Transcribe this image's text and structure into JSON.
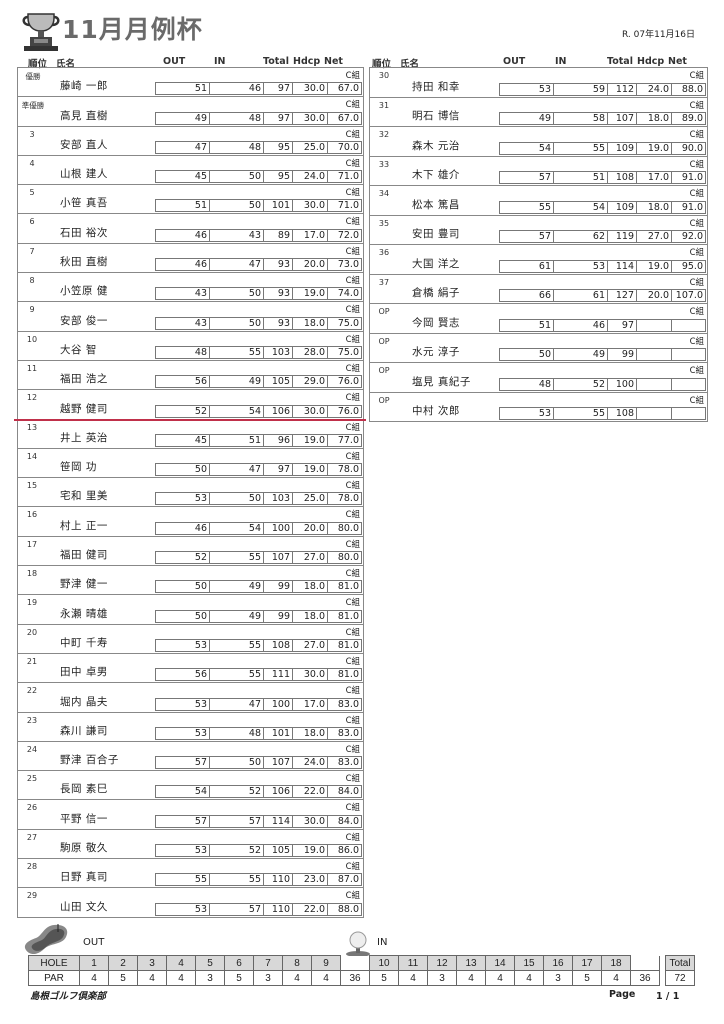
{
  "title": "11月月例杯",
  "date": "R. 07年11月16日",
  "headers": {
    "rank": "順位",
    "name": "氏名",
    "out": "OUT",
    "in": "IN",
    "total": "Total",
    "hdcp": "Hdcp",
    "net": "Net"
  },
  "group_label": "C組",
  "left_rows": [
    [
      "優勝",
      "藤崎 一郎",
      "51",
      "46",
      "97",
      "30.0",
      "67.0"
    ],
    [
      "準優勝",
      "高見 直樹",
      "49",
      "48",
      "97",
      "30.0",
      "67.0"
    ],
    [
      "3",
      "安部 直人",
      "47",
      "48",
      "95",
      "25.0",
      "70.0"
    ],
    [
      "4",
      "山根 建人",
      "45",
      "50",
      "95",
      "24.0",
      "71.0"
    ],
    [
      "5",
      "小笹 真吾",
      "51",
      "50",
      "101",
      "30.0",
      "71.0"
    ],
    [
      "6",
      "石田 裕次",
      "46",
      "43",
      "89",
      "17.0",
      "72.0"
    ],
    [
      "7",
      "秋田 直樹",
      "46",
      "47",
      "93",
      "20.0",
      "73.0"
    ],
    [
      "8",
      "小笠原 健",
      "43",
      "50",
      "93",
      "19.0",
      "74.0"
    ],
    [
      "9",
      "安部 俊一",
      "43",
      "50",
      "93",
      "18.0",
      "75.0"
    ],
    [
      "10",
      "大谷 智",
      "48",
      "55",
      "103",
      "28.0",
      "75.0"
    ],
    [
      "11",
      "福田 浩之",
      "56",
      "49",
      "105",
      "29.0",
      "76.0"
    ],
    [
      "12",
      "越野 健司",
      "52",
      "54",
      "106",
      "30.0",
      "76.0"
    ],
    [
      "13",
      "井上 英治",
      "45",
      "51",
      "96",
      "19.0",
      "77.0"
    ],
    [
      "14",
      "笹岡 功",
      "50",
      "47",
      "97",
      "19.0",
      "78.0"
    ],
    [
      "15",
      "宅和 里美",
      "53",
      "50",
      "103",
      "25.0",
      "78.0"
    ],
    [
      "16",
      "村上 正一",
      "46",
      "54",
      "100",
      "20.0",
      "80.0"
    ],
    [
      "17",
      "福田 健司",
      "52",
      "55",
      "107",
      "27.0",
      "80.0"
    ],
    [
      "18",
      "野津 健一",
      "50",
      "49",
      "99",
      "18.0",
      "81.0"
    ],
    [
      "19",
      "永瀬 晴雄",
      "50",
      "49",
      "99",
      "18.0",
      "81.0"
    ],
    [
      "20",
      "中町 千寿",
      "53",
      "55",
      "108",
      "27.0",
      "81.0"
    ],
    [
      "21",
      "田中 卓男",
      "56",
      "55",
      "111",
      "30.0",
      "81.0"
    ],
    [
      "22",
      "堀内 晶夫",
      "53",
      "47",
      "100",
      "17.0",
      "83.0"
    ],
    [
      "23",
      "森川 謙司",
      "53",
      "48",
      "101",
      "18.0",
      "83.0"
    ],
    [
      "24",
      "野津 百合子",
      "57",
      "50",
      "107",
      "24.0",
      "83.0"
    ],
    [
      "25",
      "長岡 素巳",
      "54",
      "52",
      "106",
      "22.0",
      "84.0"
    ],
    [
      "26",
      "平野 信一",
      "57",
      "57",
      "114",
      "30.0",
      "84.0"
    ],
    [
      "27",
      "駒原 敬久",
      "53",
      "52",
      "105",
      "19.0",
      "86.0"
    ],
    [
      "28",
      "日野 真司",
      "55",
      "55",
      "110",
      "23.0",
      "87.0"
    ],
    [
      "29",
      "山田 文久",
      "53",
      "57",
      "110",
      "22.0",
      "88.0"
    ]
  ],
  "right_rows": [
    [
      "30",
      "持田 和幸",
      "53",
      "59",
      "112",
      "24.0",
      "88.0"
    ],
    [
      "31",
      "明石 博信",
      "49",
      "58",
      "107",
      "18.0",
      "89.0"
    ],
    [
      "32",
      "森木 元治",
      "54",
      "55",
      "109",
      "19.0",
      "90.0"
    ],
    [
      "33",
      "木下 雄介",
      "57",
      "51",
      "108",
      "17.0",
      "91.0"
    ],
    [
      "34",
      "松本 篤昌",
      "55",
      "54",
      "109",
      "18.0",
      "91.0"
    ],
    [
      "35",
      "安田 豊司",
      "57",
      "62",
      "119",
      "27.0",
      "92.0"
    ],
    [
      "36",
      "大国 洋之",
      "61",
      "53",
      "114",
      "19.0",
      "95.0"
    ],
    [
      "37",
      "倉橋 絹子",
      "66",
      "61",
      "127",
      "20.0",
      "107.0"
    ],
    [
      "OP",
      "今岡 賢志",
      "51",
      "46",
      "97",
      "",
      ""
    ],
    [
      "OP",
      "水元 淳子",
      "50",
      "49",
      "99",
      "",
      ""
    ],
    [
      "OP",
      "塩見 真紀子",
      "48",
      "52",
      "100",
      "",
      ""
    ],
    [
      "OP",
      "中村 次郎",
      "53",
      "55",
      "108",
      "",
      ""
    ]
  ],
  "cutoff_line_color": "#c0304a",
  "par_table": {
    "out_label": "OUT",
    "in_label": "IN",
    "hole_label": "HOLE",
    "par_label": "PAR",
    "total_label": "Total",
    "holes_out": [
      "1",
      "2",
      "3",
      "4",
      "5",
      "6",
      "7",
      "8",
      "9"
    ],
    "par_out": [
      "4",
      "5",
      "4",
      "4",
      "3",
      "5",
      "3",
      "4",
      "4"
    ],
    "out_total": "36",
    "holes_in": [
      "10",
      "11",
      "12",
      "13",
      "14",
      "15",
      "16",
      "17",
      "18"
    ],
    "par_in": [
      "5",
      "4",
      "3",
      "4",
      "4",
      "4",
      "3",
      "5",
      "4"
    ],
    "in_total": "36",
    "grand_total": "72"
  },
  "footer": {
    "club": "島根ゴルフ倶楽部",
    "page_label": "Page",
    "page_num": "1 /   1"
  },
  "icons": [
    "trophy-icon",
    "golf-green-icon",
    "golf-ball-icon"
  ]
}
